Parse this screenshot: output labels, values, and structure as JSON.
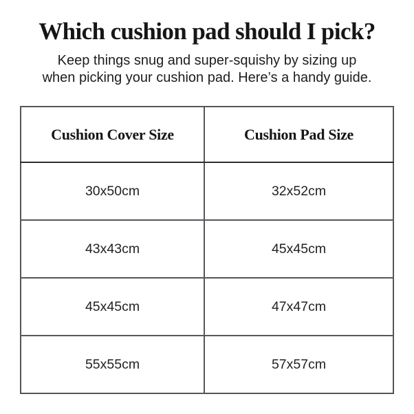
{
  "header": {
    "title": "Which cushion pad should I pick?",
    "subtitle_lines": [
      "Keep things snug and super-squishy by sizing up",
      "when picking your cushion pad. Here’s a handy guide."
    ]
  },
  "table": {
    "headers": {
      "cover": "Cushion Cover Size",
      "pad": "Cushion Pad Size"
    },
    "rows": [
      {
        "cover_size": "30x50cm",
        "pad_size": "32x52cm"
      },
      {
        "cover_size": "43x43cm",
        "pad_size": "45x45cm"
      },
      {
        "cover_size": "45x45cm",
        "pad_size": "47x47cm"
      },
      {
        "cover_size": "55x55cm",
        "pad_size": "57x57cm"
      }
    ]
  },
  "colors": {
    "background": "#ffffff",
    "text": "#1d1d1b",
    "table_border": "#55565a"
  }
}
